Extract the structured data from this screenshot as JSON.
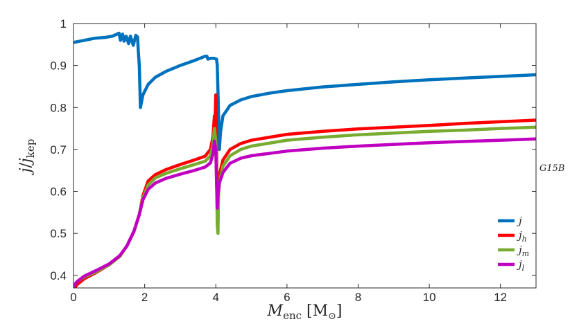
{
  "chart_data": {
    "type": "line",
    "title": "",
    "xlabel": "M_enc [M⊙]",
    "ylabel": "j/j_kep",
    "xlim": [
      0,
      13
    ],
    "ylim": [
      0.37,
      1.0
    ],
    "xticks": [
      0,
      2,
      4,
      6,
      8,
      10,
      12
    ],
    "yticks": [
      0.4,
      0.5,
      0.6,
      0.7,
      0.8,
      0.9,
      1.0
    ],
    "xtick_labels": [
      "0",
      "2",
      "4",
      "6",
      "8",
      "10",
      "12"
    ],
    "ytick_labels": [
      "0.4",
      "0.5",
      "0.6",
      "0.7",
      "0.8",
      "0.9",
      "1"
    ],
    "grid": false,
    "legend_position": "bottom-right",
    "annotation": "G15B",
    "series": [
      {
        "name": "j",
        "color": "#0072BD",
        "points": [
          [
            0,
            0.955
          ],
          [
            0.3,
            0.96
          ],
          [
            0.6,
            0.965
          ],
          [
            0.9,
            0.967
          ],
          [
            1.1,
            0.97
          ],
          [
            1.28,
            0.977
          ],
          [
            1.32,
            0.96
          ],
          [
            1.38,
            0.975
          ],
          [
            1.42,
            0.958
          ],
          [
            1.48,
            0.97
          ],
          [
            1.55,
            0.952
          ],
          [
            1.6,
            0.97
          ],
          [
            1.68,
            0.948
          ],
          [
            1.75,
            0.972
          ],
          [
            1.8,
            0.968
          ],
          [
            1.82,
            0.935
          ],
          [
            1.85,
            0.9
          ],
          [
            1.88,
            0.8
          ],
          [
            1.95,
            0.83
          ],
          [
            2.1,
            0.855
          ],
          [
            2.3,
            0.872
          ],
          [
            2.6,
            0.886
          ],
          [
            3.0,
            0.9
          ],
          [
            3.4,
            0.912
          ],
          [
            3.7,
            0.922
          ],
          [
            3.75,
            0.922
          ],
          [
            3.78,
            0.915
          ],
          [
            3.85,
            0.917
          ],
          [
            3.95,
            0.917
          ],
          [
            4.02,
            0.915
          ],
          [
            4.04,
            0.9
          ],
          [
            4.06,
            0.84
          ],
          [
            4.08,
            0.775
          ],
          [
            4.1,
            0.7
          ],
          [
            4.13,
            0.74
          ],
          [
            4.2,
            0.78
          ],
          [
            4.4,
            0.805
          ],
          [
            4.7,
            0.818
          ],
          [
            5.0,
            0.826
          ],
          [
            5.5,
            0.834
          ],
          [
            6,
            0.84
          ],
          [
            7,
            0.849
          ],
          [
            8,
            0.855
          ],
          [
            9,
            0.861
          ],
          [
            10,
            0.866
          ],
          [
            11,
            0.87
          ],
          [
            12,
            0.874
          ],
          [
            13,
            0.878
          ]
        ]
      },
      {
        "name": "j_h",
        "color": "#FF0000",
        "points": [
          [
            0,
            0.365
          ],
          [
            0.1,
            0.378
          ],
          [
            0.3,
            0.392
          ],
          [
            0.6,
            0.405
          ],
          [
            1.0,
            0.425
          ],
          [
            1.3,
            0.445
          ],
          [
            1.5,
            0.47
          ],
          [
            1.7,
            0.505
          ],
          [
            1.85,
            0.545
          ],
          [
            1.95,
            0.59
          ],
          [
            2.1,
            0.625
          ],
          [
            2.3,
            0.64
          ],
          [
            2.6,
            0.652
          ],
          [
            3.0,
            0.664
          ],
          [
            3.4,
            0.675
          ],
          [
            3.7,
            0.684
          ],
          [
            3.85,
            0.7
          ],
          [
            3.92,
            0.73
          ],
          [
            3.96,
            0.78
          ],
          [
            3.98,
            0.77
          ],
          [
            4.0,
            0.83
          ],
          [
            4.02,
            0.7
          ],
          [
            4.04,
            0.55
          ],
          [
            4.06,
            0.62
          ],
          [
            4.1,
            0.64
          ],
          [
            4.2,
            0.675
          ],
          [
            4.4,
            0.7
          ],
          [
            4.7,
            0.714
          ],
          [
            5,
            0.722
          ],
          [
            6,
            0.736
          ],
          [
            7,
            0.743
          ],
          [
            8,
            0.749
          ],
          [
            9,
            0.753
          ],
          [
            10,
            0.757
          ],
          [
            11,
            0.762
          ],
          [
            12,
            0.766
          ],
          [
            13,
            0.77
          ]
        ]
      },
      {
        "name": "j_m",
        "color": "#77AC30",
        "points": [
          [
            0,
            0.375
          ],
          [
            0.1,
            0.385
          ],
          [
            0.3,
            0.396
          ],
          [
            0.6,
            0.407
          ],
          [
            1.0,
            0.425
          ],
          [
            1.3,
            0.445
          ],
          [
            1.5,
            0.47
          ],
          [
            1.7,
            0.505
          ],
          [
            1.85,
            0.545
          ],
          [
            1.95,
            0.585
          ],
          [
            2.1,
            0.615
          ],
          [
            2.3,
            0.632
          ],
          [
            2.6,
            0.643
          ],
          [
            3.0,
            0.654
          ],
          [
            3.4,
            0.664
          ],
          [
            3.7,
            0.672
          ],
          [
            3.85,
            0.685
          ],
          [
            3.92,
            0.71
          ],
          [
            3.96,
            0.75
          ],
          [
            4.0,
            0.72
          ],
          [
            4.02,
            0.65
          ],
          [
            4.04,
            0.52
          ],
          [
            4.06,
            0.5
          ],
          [
            4.08,
            0.6
          ],
          [
            4.1,
            0.62
          ],
          [
            4.2,
            0.66
          ],
          [
            4.4,
            0.685
          ],
          [
            4.7,
            0.7
          ],
          [
            5,
            0.708
          ],
          [
            6,
            0.722
          ],
          [
            7,
            0.729
          ],
          [
            8,
            0.735
          ],
          [
            9,
            0.739
          ],
          [
            10,
            0.743
          ],
          [
            11,
            0.746
          ],
          [
            12,
            0.75
          ],
          [
            13,
            0.753
          ]
        ]
      },
      {
        "name": "j_l",
        "color": "#C000C0",
        "points": [
          [
            0,
            0.37
          ],
          [
            0.05,
            0.38
          ],
          [
            0.1,
            0.385
          ],
          [
            0.3,
            0.398
          ],
          [
            0.6,
            0.41
          ],
          [
            1.0,
            0.427
          ],
          [
            1.3,
            0.447
          ],
          [
            1.5,
            0.47
          ],
          [
            1.7,
            0.505
          ],
          [
            1.85,
            0.545
          ],
          [
            1.95,
            0.58
          ],
          [
            2.1,
            0.605
          ],
          [
            2.3,
            0.62
          ],
          [
            2.6,
            0.631
          ],
          [
            3.0,
            0.641
          ],
          [
            3.4,
            0.65
          ],
          [
            3.7,
            0.658
          ],
          [
            3.85,
            0.668
          ],
          [
            3.92,
            0.69
          ],
          [
            3.96,
            0.72
          ],
          [
            4.0,
            0.7
          ],
          [
            4.02,
            0.62
          ],
          [
            4.04,
            0.56
          ],
          [
            4.06,
            0.59
          ],
          [
            4.1,
            0.62
          ],
          [
            4.2,
            0.645
          ],
          [
            4.4,
            0.667
          ],
          [
            4.7,
            0.679
          ],
          [
            5,
            0.685
          ],
          [
            6,
            0.696
          ],
          [
            7,
            0.703
          ],
          [
            8,
            0.708
          ],
          [
            9,
            0.712
          ],
          [
            10,
            0.716
          ],
          [
            11,
            0.719
          ],
          [
            12,
            0.722
          ],
          [
            13,
            0.725
          ]
        ]
      }
    ]
  }
}
